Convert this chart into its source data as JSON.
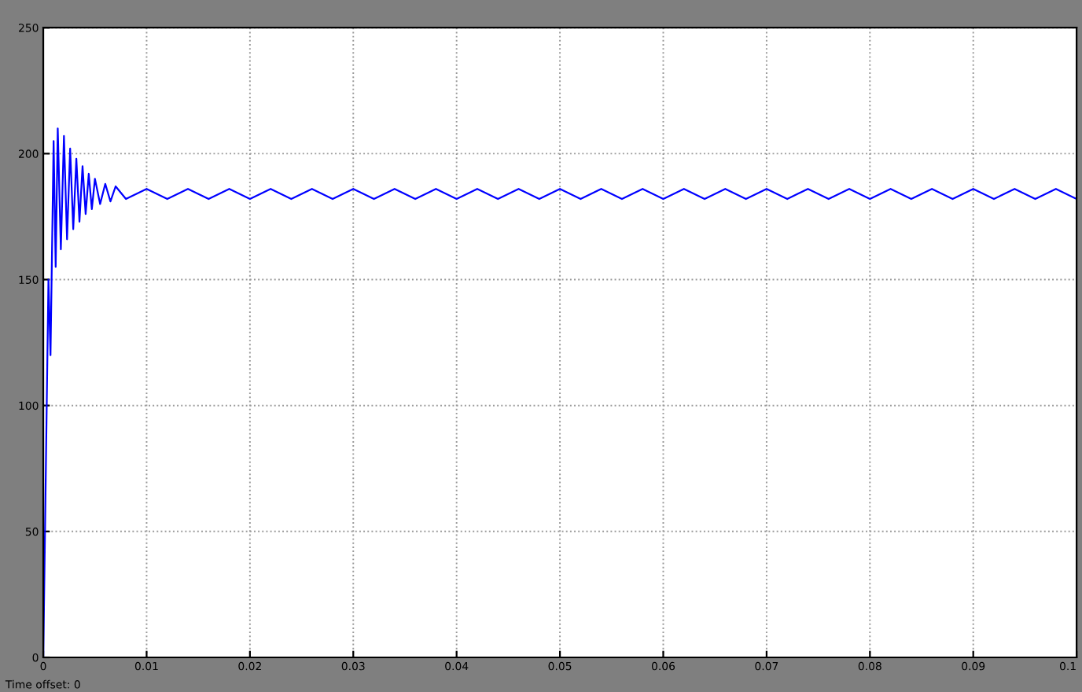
{
  "chart_data": {
    "type": "line",
    "x": [
      0,
      0.0005,
      0.0007,
      0.001,
      0.0012,
      0.0014,
      0.0017,
      0.002,
      0.0023,
      0.0026,
      0.0029,
      0.0032,
      0.0035,
      0.0038,
      0.0041,
      0.0044,
      0.0047,
      0.005,
      0.0055,
      0.006,
      0.0065,
      0.007,
      0.008,
      0.01,
      0.012,
      0.014,
      0.016,
      0.018,
      0.02,
      0.022,
      0.024,
      0.026,
      0.028,
      0.03,
      0.032,
      0.034,
      0.036,
      0.038,
      0.04,
      0.042,
      0.044,
      0.046,
      0.048,
      0.05,
      0.052,
      0.054,
      0.056,
      0.058,
      0.06,
      0.062,
      0.064,
      0.066,
      0.068,
      0.07,
      0.072,
      0.074,
      0.076,
      0.078,
      0.08,
      0.082,
      0.084,
      0.086,
      0.088,
      0.09,
      0.092,
      0.094,
      0.096,
      0.098,
      0.1
    ],
    "series": [
      {
        "color": "#0000ff",
        "values": [
          0,
          150,
          120,
          205,
          155,
          210,
          162,
          207,
          166,
          202,
          170,
          198,
          173,
          195,
          176,
          192,
          178,
          190,
          180,
          188,
          181,
          187,
          182,
          186,
          182,
          186,
          182,
          186,
          182,
          186,
          182,
          186,
          182,
          186,
          182,
          186,
          182,
          186,
          182,
          186,
          182,
          186,
          182,
          186,
          182,
          186,
          182,
          186,
          182,
          186,
          182,
          186,
          182,
          186,
          182,
          186,
          182,
          186,
          182,
          186,
          182,
          186,
          182,
          186,
          182,
          186,
          182,
          186,
          182
        ]
      }
    ],
    "xlim": [
      0,
      0.1
    ],
    "ylim": [
      0,
      250
    ],
    "xticks": [
      0,
      0.01,
      0.02,
      0.03,
      0.04,
      0.05,
      0.06,
      0.07,
      0.08,
      0.09,
      0.1
    ],
    "yticks": [
      0,
      50,
      100,
      150,
      200,
      250
    ],
    "grid": true,
    "marker": "none",
    "line_style": "solid",
    "annotations": [
      "Time offset: 0"
    ]
  }
}
